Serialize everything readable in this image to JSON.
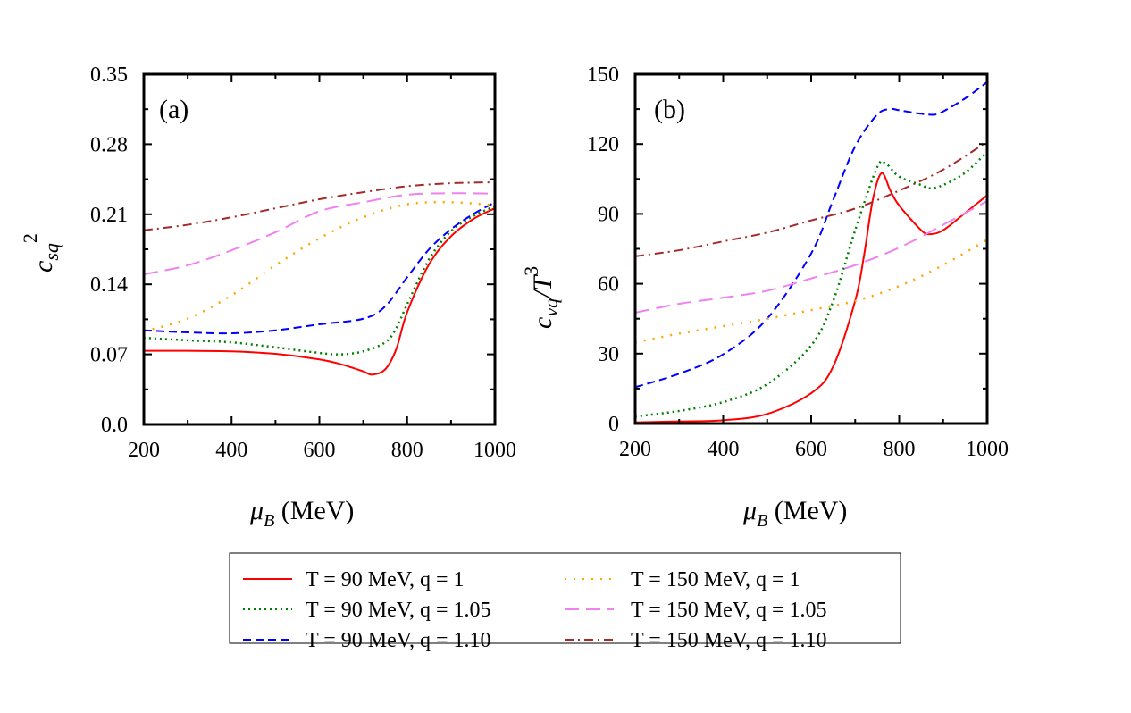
{
  "chart_data": [
    {
      "type": "line",
      "panel_label": "(a)",
      "xlabel": {
        "base": "μ",
        "sub": "B",
        "rest": " (MeV)"
      },
      "ylabel": {
        "base": "c",
        "sub": "sq",
        "sup": "2"
      },
      "xlim": [
        200,
        1000
      ],
      "ylim": [
        0.0,
        0.35
      ],
      "xticks": [
        "200",
        "400",
        "600",
        "800",
        "1000"
      ],
      "yticks": [
        "0.0",
        "0.07",
        "0.14",
        "0.21",
        "0.28",
        "0.35"
      ],
      "grid": false,
      "series": [
        {
          "name": "T = 90 MeV, q = 1",
          "color": "#ff0000",
          "style": "solid",
          "x": [
            200,
            300,
            400,
            500,
            600,
            650,
            700,
            720,
            750,
            775,
            800,
            850,
            900,
            950,
            1000
          ],
          "y": [
            0.0735,
            0.0735,
            0.073,
            0.0705,
            0.065,
            0.06,
            0.053,
            0.0497,
            0.055,
            0.075,
            0.112,
            0.16,
            0.188,
            0.205,
            0.216
          ]
        },
        {
          "name": "T = 90 MeV, q = 1.05",
          "color": "#008000",
          "style": "dotted",
          "x": [
            200,
            300,
            400,
            500,
            600,
            650,
            700,
            750,
            775,
            800,
            850,
            900,
            950,
            1000
          ],
          "y": [
            0.0866,
            0.084,
            0.082,
            0.077,
            0.0714,
            0.07,
            0.073,
            0.082,
            0.096,
            0.12,
            0.165,
            0.193,
            0.208,
            0.218
          ]
        },
        {
          "name": "T = 90 MeV, q = 1.10",
          "color": "#0000ff",
          "style": "dashed",
          "x": [
            200,
            300,
            400,
            500,
            600,
            700,
            750,
            800,
            850,
            900,
            950,
            1000
          ],
          "y": [
            0.094,
            0.092,
            0.091,
            0.094,
            0.1,
            0.1056,
            0.118,
            0.147,
            0.175,
            0.195,
            0.21,
            0.222
          ]
        },
        {
          "name": "T = 150 MeV, q = 1",
          "color": "#ffa500",
          "style": "sparse-dotted",
          "x": [
            200,
            300,
            400,
            500,
            600,
            700,
            800,
            900,
            1000
          ],
          "y": [
            0.093,
            0.1057,
            0.129,
            0.159,
            0.186,
            0.207,
            0.22,
            0.222,
            0.219
          ]
        },
        {
          "name": "T = 150 MeV, q = 1.05",
          "color": "#ee82ee",
          "style": "long-dashed",
          "x": [
            200,
            300,
            400,
            500,
            600,
            700,
            800,
            900,
            1000
          ],
          "y": [
            0.15,
            0.159,
            0.174,
            0.192,
            0.213,
            0.222,
            0.2295,
            0.231,
            0.2306
          ]
        },
        {
          "name": "T = 150 MeV, q = 1.10",
          "color": "#a52a2a",
          "style": "dash-dot",
          "x": [
            200,
            300,
            400,
            500,
            600,
            700,
            800,
            900,
            1000
          ],
          "y": [
            0.194,
            0.1995,
            0.207,
            0.216,
            0.225,
            0.232,
            0.238,
            0.241,
            0.242
          ]
        }
      ]
    },
    {
      "type": "line",
      "panel_label": "(b)",
      "xlabel": {
        "base": "μ",
        "sub": "B",
        "rest": " (MeV)"
      },
      "ylabel": {
        "base": "c",
        "sub": "vq",
        "mid": "/T",
        "sup": "3"
      },
      "xlim": [
        200,
        1000
      ],
      "ylim": [
        0,
        150
      ],
      "xticks": [
        "200",
        "400",
        "600",
        "800",
        "1000"
      ],
      "yticks": [
        "0",
        "30",
        "60",
        "90",
        "120",
        "150"
      ],
      "grid": false,
      "series": [
        {
          "name": "T = 90 MeV, q = 1",
          "color": "#ff0000",
          "style": "solid",
          "x": [
            200,
            300,
            400,
            500,
            600,
            650,
            700,
            720,
            740,
            760,
            780,
            800,
            850,
            870,
            900,
            950,
            1000
          ],
          "y": [
            0.5,
            0.9,
            1.4,
            4.1,
            13,
            24.5,
            52.7,
            72,
            96,
            107.5,
            100,
            93.6,
            83,
            81.3,
            83,
            90.4,
            98
          ]
        },
        {
          "name": "T = 90 MeV, q = 1.05",
          "color": "#008000",
          "style": "dotted",
          "x": [
            200,
            300,
            400,
            500,
            600,
            650,
            700,
            750,
            770,
            800,
            850,
            870,
            900,
            950,
            1000
          ],
          "y": [
            3,
            5.4,
            9.2,
            16.9,
            33.5,
            52.6,
            83,
            110,
            111.5,
            106,
            102.4,
            101,
            102.4,
            107.7,
            116.6
          ]
        },
        {
          "name": "T = 90 MeV, q = 1.10",
          "color": "#0000ff",
          "style": "dashed",
          "x": [
            200,
            300,
            400,
            500,
            600,
            650,
            700,
            750,
            780,
            800,
            850,
            880,
            900,
            950,
            1000
          ],
          "y": [
            15.6,
            21.4,
            29.7,
            45,
            73,
            96,
            119,
            132.6,
            135,
            134.5,
            133,
            132.6,
            134,
            139.6,
            146.6
          ]
        },
        {
          "name": "T = 150 MeV, q = 1",
          "color": "#ffa500",
          "style": "sparse-dotted",
          "x": [
            200,
            300,
            400,
            500,
            600,
            700,
            800,
            900,
            1000
          ],
          "y": [
            34.8,
            38.6,
            41.8,
            45,
            48.7,
            52.6,
            59,
            68,
            79
          ]
        },
        {
          "name": "T = 150 MeV, q = 1.05",
          "color": "#ee82ee",
          "style": "long-dashed",
          "x": [
            200,
            300,
            400,
            500,
            600,
            700,
            800,
            900,
            1000
          ],
          "y": [
            47.6,
            51.4,
            54,
            57,
            62.3,
            68,
            75.5,
            85.3,
            95.5
          ]
        },
        {
          "name": "T = 150 MeV, q = 1.10",
          "color": "#a52a2a",
          "style": "dash-dot",
          "x": [
            200,
            300,
            400,
            500,
            600,
            700,
            800,
            900,
            1000
          ],
          "y": [
            71.8,
            74.4,
            78.2,
            82,
            87.2,
            92.3,
            100,
            109,
            121
          ]
        }
      ]
    }
  ],
  "legend": {
    "placement": "bottom-center",
    "entries": [
      {
        "label": "T = 90 MeV, q = 1",
        "color": "#ff0000",
        "style": "solid"
      },
      {
        "label": "T = 90 MeV, q = 1.05",
        "color": "#008000",
        "style": "dotted"
      },
      {
        "label": "T = 90 MeV, q = 1.10",
        "color": "#0000ff",
        "style": "dashed"
      },
      {
        "label": "T = 150 MeV, q = 1",
        "color": "#ffa500",
        "style": "sparse-dotted"
      },
      {
        "label": "T = 150 MeV, q = 1.05",
        "color": "#ee82ee",
        "style": "long-dashed"
      },
      {
        "label": "T = 150 MeV, q = 1.10",
        "color": "#a52a2a",
        "style": "dash-dot"
      }
    ]
  }
}
